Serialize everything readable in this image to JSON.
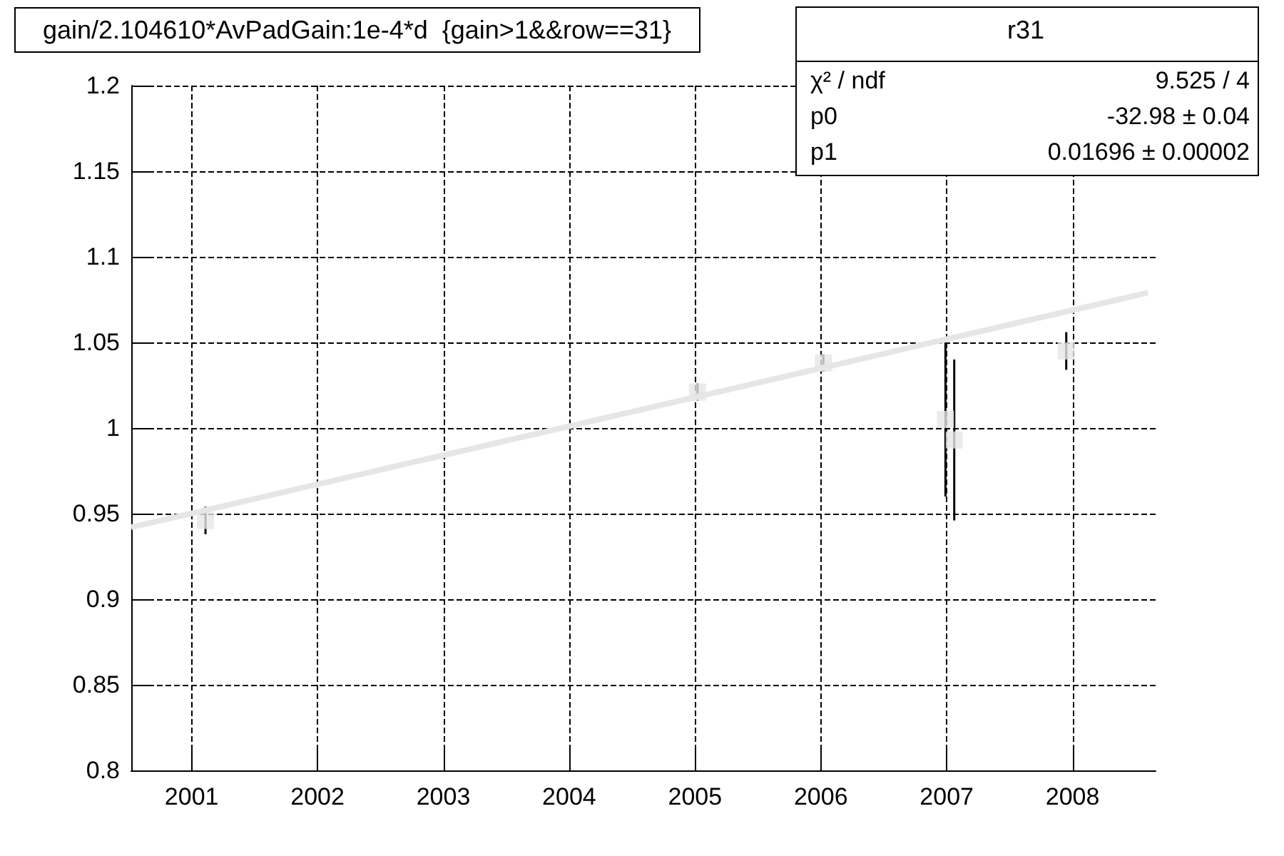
{
  "chart_data": {
    "type": "scatter",
    "title": "gain/2.104610*AvPadGain:1e-4*d  {gain>1&&row==31}",
    "annotations": [
      "r31",
      "χ² / ndf",
      "9.525 / 4",
      "p0",
      "-32.98 ± 0.04",
      "p1",
      "0.01696 ± 0.00002"
    ],
    "xlim": [
      2000.52,
      2008.66
    ],
    "xticks": [
      2001,
      2002,
      2003,
      2004,
      2005,
      2006,
      2007,
      2008
    ],
    "ylim": [
      0.8,
      1.2
    ],
    "yticks": [
      0.8,
      0.85,
      0.9,
      0.95,
      1,
      1.05,
      1.1,
      1.15,
      1.2
    ],
    "grid": true,
    "marker": "square",
    "series": [
      {
        "color": "#e6e6e6",
        "x": [
          2001.11,
          2005.02,
          2006.02,
          2006.99,
          2007.06,
          2007.95
        ],
        "values": [
          0.946,
          1.021,
          1.038,
          1.005,
          0.993,
          1.045
        ],
        "errors": [
          0.008,
          0.005,
          0.005,
          0.045,
          0.047,
          0.011
        ]
      },
      {
        "type": "line",
        "color": "#e6e6e6",
        "marker": "none",
        "x": [
          2000.52,
          2008.6
        ],
        "values": [
          0.942,
          1.079
        ]
      }
    ]
  }
}
